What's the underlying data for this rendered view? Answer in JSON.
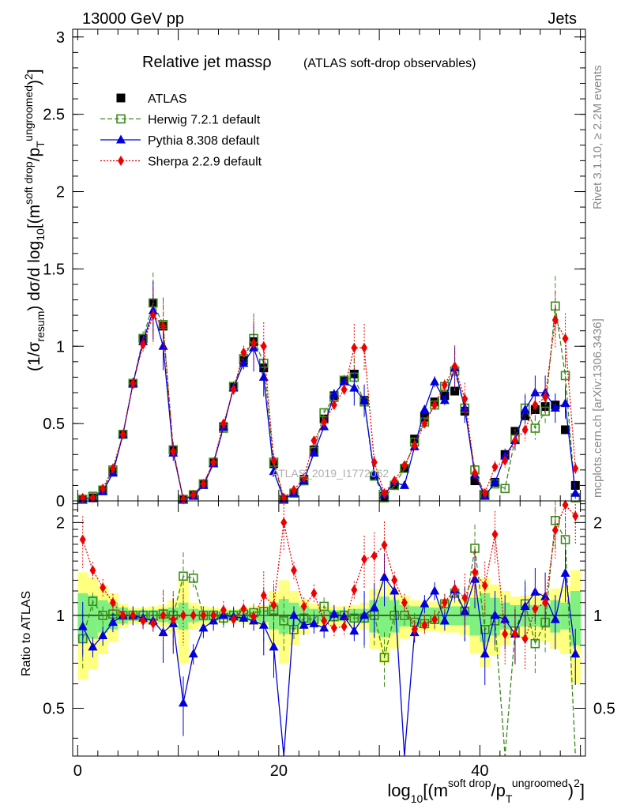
{
  "header": {
    "left": "13000 GeV pp",
    "right": "Jets"
  },
  "side_text": {
    "rivet": "Rivet 3.1.10, ≥ 2.2M events",
    "mcplots": "mcplots.cern.ch [arXiv:1306.3436]"
  },
  "watermark": "ATLAS_2019_I1772062",
  "colors": {
    "ATLAS": "#000000",
    "Herwig": "#3a8a1a",
    "Pythia": "#0000dd",
    "Sherpa": "#ee0000",
    "band_inner": "#80f080",
    "band_outer": "#ffff80"
  },
  "chart_data": [
    {
      "type": "line",
      "panel": "main",
      "title_main": "Relative jet massρ",
      "title_sub": "(ATLAS soft-drop observables)",
      "ylabel": "(1/σresum) dσ/d log10[(m^(soft drop)/pT^(ungroomed))²]",
      "xlabel": "log10[(m^(soft drop)/pT^(ungroomed))²]",
      "xlim": [
        -0.5,
        50.5
      ],
      "ylim": [
        0,
        3.05
      ],
      "x_ticks": [
        0,
        20,
        40
      ],
      "y_ticks": [
        0,
        0.5,
        1,
        1.5,
        2,
        2.5,
        3
      ],
      "y_tick_labels": [
        "0",
        "0.5",
        "1",
        "1.5",
        "2",
        "2.5",
        "3"
      ],
      "x": [
        0.5,
        1.5,
        2.5,
        3.5,
        4.5,
        5.5,
        6.5,
        7.5,
        8.5,
        9.5,
        10.5,
        11.5,
        12.5,
        13.5,
        14.5,
        15.5,
        16.5,
        17.5,
        18.5,
        19.5,
        20.5,
        21.5,
        22.5,
        23.5,
        24.5,
        25.5,
        26.5,
        27.5,
        28.5,
        29.5,
        30.5,
        31.5,
        32.5,
        33.5,
        34.5,
        35.5,
        36.5,
        37.5,
        38.5,
        39.5,
        40.5,
        41.5,
        42.5,
        43.5,
        44.5,
        45.5,
        46.5,
        47.5,
        48.5,
        49.5
      ],
      "series": [
        {
          "name": "ATLAS",
          "marker": "square",
          "values": [
            0.01,
            0.02,
            0.07,
            0.19,
            0.43,
            0.76,
            1.05,
            1.28,
            1.13,
            0.33,
            0.01,
            0.04,
            0.11,
            0.25,
            0.48,
            0.74,
            0.91,
            1.03,
            0.86,
            0.24,
            0.01,
            0.05,
            0.14,
            0.33,
            0.53,
            0.68,
            0.78,
            0.82,
            0.65,
            0.16,
            0.03,
            0.1,
            0.21,
            0.4,
            0.54,
            0.64,
            0.68,
            0.71,
            0.58,
            0.13,
            0.04,
            0.12,
            0.3,
            0.45,
            0.55,
            0.59,
            0.61,
            0.62,
            0.46,
            0.1
          ]
        },
        {
          "name": "Herwig 7.2.1 default",
          "marker": "open-square",
          "dash": "6,3",
          "values": [
            0.01,
            0.03,
            0.07,
            0.2,
            0.43,
            0.76,
            1.05,
            1.28,
            1.14,
            0.33,
            0.01,
            0.04,
            0.11,
            0.25,
            0.47,
            0.74,
            0.92,
            1.05,
            0.89,
            0.25,
            0.01,
            0.05,
            0.13,
            0.32,
            0.57,
            0.67,
            0.78,
            0.8,
            0.64,
            0.16,
            0.02,
            0.1,
            0.21,
            0.38,
            0.51,
            0.62,
            0.74,
            0.84,
            0.6,
            0.2,
            0.04,
            0.11,
            0.08,
            0.4,
            0.6,
            0.47,
            0.58,
            1.26,
            0.81,
            0.02
          ]
        },
        {
          "name": "Pythia 8.308 default",
          "marker": "triangle",
          "values": [
            0.01,
            0.02,
            0.06,
            0.18,
            0.43,
            0.76,
            1.03,
            1.23,
            1.0,
            0.31,
            0.01,
            0.03,
            0.1,
            0.24,
            0.48,
            0.73,
            0.89,
            0.99,
            0.8,
            0.19,
            0.01,
            0.05,
            0.13,
            0.31,
            0.48,
            0.69,
            0.77,
            0.73,
            0.65,
            0.17,
            0.04,
            0.12,
            0.1,
            0.35,
            0.59,
            0.77,
            0.65,
            0.86,
            0.6,
            0.17,
            0.03,
            0.12,
            0.29,
            0.39,
            0.59,
            0.7,
            0.7,
            0.6,
            0.63,
            0.05
          ]
        },
        {
          "name": "Sherpa 2.2.9 default",
          "marker": "diamond",
          "dash": "2,2",
          "values": [
            0.02,
            0.02,
            0.08,
            0.21,
            0.43,
            0.76,
            1.01,
            1.2,
            1.13,
            0.32,
            0.01,
            0.04,
            0.11,
            0.25,
            0.5,
            0.72,
            0.96,
            1.02,
            1.0,
            0.26,
            0.02,
            0.07,
            0.15,
            0.39,
            0.51,
            0.62,
            0.72,
            0.99,
            0.99,
            0.25,
            0.05,
            0.13,
            0.23,
            0.36,
            0.5,
            0.62,
            0.75,
            0.87,
            0.66,
            0.18,
            0.05,
            0.22,
            0.26,
            0.39,
            0.46,
            0.62,
            0.67,
            1.17,
            1.05,
            0.21
          ]
        }
      ],
      "legend_position": "top-left"
    },
    {
      "type": "line",
      "panel": "ratio",
      "ylabel": "Ratio to ATLAS",
      "xlabel": "log10[(m^(soft drop)/pT^(ungroomed))²]",
      "xlim": [
        -0.5,
        50.5
      ],
      "ylim": [
        0.35,
        2.35
      ],
      "x_ticks": [
        0,
        20,
        40
      ],
      "x_tick_labels": [
        "0",
        "20",
        "40"
      ],
      "y_ticks": [
        0.5,
        1,
        2
      ],
      "y_tick_labels": [
        "0.5",
        "1",
        "2"
      ],
      "x": [
        0.5,
        1.5,
        2.5,
        3.5,
        4.5,
        5.5,
        6.5,
        7.5,
        8.5,
        9.5,
        10.5,
        11.5,
        12.5,
        13.5,
        14.5,
        15.5,
        16.5,
        17.5,
        18.5,
        19.5,
        20.5,
        21.5,
        22.5,
        23.5,
        24.5,
        25.5,
        26.5,
        27.5,
        28.5,
        29.5,
        30.5,
        31.5,
        32.5,
        33.5,
        34.5,
        35.5,
        36.5,
        37.5,
        38.5,
        39.5,
        40.5,
        41.5,
        42.5,
        43.5,
        44.5,
        45.5,
        46.5,
        47.5,
        48.5,
        49.5
      ],
      "band_inner_halfwidth": [
        0.18,
        0.16,
        0.12,
        0.1,
        0.06,
        0.04,
        0.04,
        0.04,
        0.05,
        0.06,
        0.1,
        0.05,
        0.04,
        0.04,
        0.03,
        0.04,
        0.04,
        0.04,
        0.05,
        0.1,
        0.13,
        0.1,
        0.07,
        0.05,
        0.04,
        0.04,
        0.04,
        0.05,
        0.05,
        0.12,
        0.15,
        0.12,
        0.08,
        0.07,
        0.06,
        0.06,
        0.07,
        0.07,
        0.07,
        0.14,
        0.18,
        0.14,
        0.1,
        0.08,
        0.08,
        0.08,
        0.09,
        0.12,
        0.1,
        0.2
      ],
      "band_outer_halfwidth": [
        0.38,
        0.33,
        0.25,
        0.18,
        0.09,
        0.06,
        0.06,
        0.07,
        0.08,
        0.12,
        0.3,
        0.1,
        0.07,
        0.06,
        0.05,
        0.05,
        0.06,
        0.07,
        0.08,
        0.2,
        0.3,
        0.2,
        0.13,
        0.09,
        0.07,
        0.07,
        0.07,
        0.08,
        0.1,
        0.22,
        0.3,
        0.22,
        0.16,
        0.12,
        0.11,
        0.11,
        0.12,
        0.12,
        0.14,
        0.25,
        0.32,
        0.26,
        0.2,
        0.15,
        0.16,
        0.16,
        0.18,
        0.22,
        0.25,
        0.4
      ],
      "series": [
        {
          "name": "Herwig 7.2.1 default",
          "values": [
            0.84,
            1.11,
            1.0,
            1.01,
            1.0,
            1.0,
            1.0,
            1.0,
            1.01,
            1.0,
            1.34,
            1.32,
            1.0,
            1.0,
            0.98,
            1.0,
            1.01,
            1.02,
            1.03,
            1.04,
            0.96,
            0.9,
            0.98,
            0.97,
            1.07,
            0.99,
            1.0,
            0.98,
            0.98,
            1.0,
            0.73,
            1.0,
            1.0,
            0.95,
            0.94,
            0.97,
            1.09,
            1.18,
            1.03,
            1.65,
            0.9,
            0.96,
            0.27,
            0.89,
            1.09,
            0.81,
            0.95,
            2.03,
            1.76,
            0.2
          ]
        },
        {
          "name": "Pythia 8.308 default",
          "values": [
            0.92,
            0.79,
            0.86,
            0.95,
            1.0,
            1.0,
            0.98,
            0.96,
            0.88,
            0.94,
            0.52,
            0.75,
            0.91,
            0.96,
            1.0,
            0.99,
            0.98,
            0.96,
            0.93,
            0.79,
            0.3,
            1.0,
            0.93,
            0.94,
            0.91,
            1.01,
            0.99,
            0.89,
            1.0,
            1.06,
            1.33,
            1.2,
            0.33,
            0.88,
            1.09,
            1.2,
            0.96,
            1.21,
            1.03,
            1.31,
            0.75,
            1.0,
            0.97,
            0.87,
            1.07,
            1.19,
            1.15,
            0.97,
            1.37,
            0.75
          ]
        },
        {
          "name": "Sherpa 2.2.9 default",
          "values": [
            1.76,
            1.4,
            1.23,
            1.1,
            1.0,
            1.0,
            0.96,
            0.94,
            1.0,
            0.97,
            1.0,
            1.0,
            1.0,
            1.0,
            1.04,
            0.97,
            1.05,
            0.99,
            1.16,
            1.08,
            2.0,
            1.4,
            1.07,
            1.18,
            0.96,
            0.91,
            0.92,
            1.21,
            1.52,
            1.56,
            1.69,
            1.3,
            1.1,
            0.9,
            0.93,
            0.97,
            1.1,
            1.22,
            1.14,
            1.38,
            1.25,
            1.83,
            0.87,
            0.87,
            0.84,
            1.05,
            1.1,
            1.89,
            2.28,
            2.1
          ]
        }
      ]
    }
  ]
}
